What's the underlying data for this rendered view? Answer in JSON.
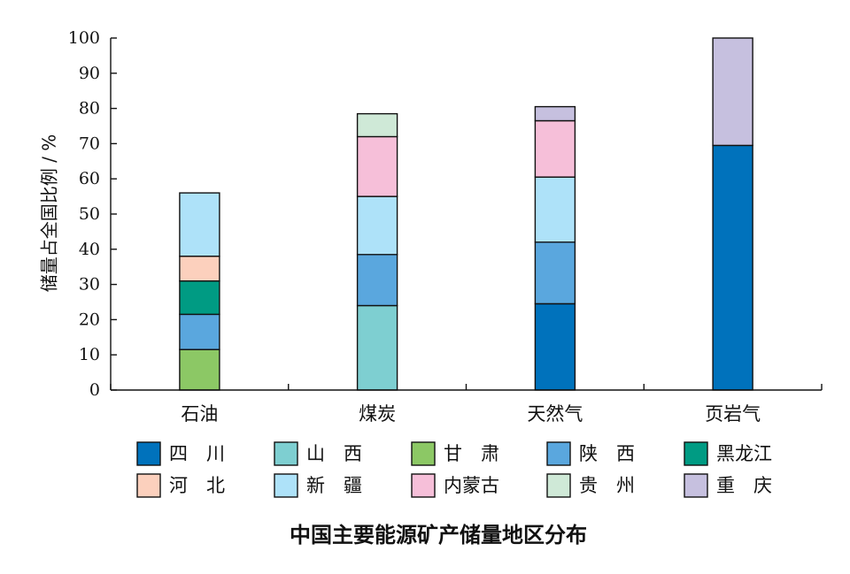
{
  "chart_data": {
    "type": "bar",
    "stacked": true,
    "title": "中国主要能源矿产储量地区分布",
    "ylabel": "储量占全国比例 / %",
    "xlabel": "",
    "ylim": [
      0,
      100
    ],
    "yticks": [
      0,
      10,
      20,
      30,
      40,
      50,
      60,
      70,
      80,
      90,
      100
    ],
    "categories": [
      "石油",
      "煤炭",
      "天然气",
      "页岩气"
    ],
    "legend_position": "bottom",
    "series": [
      {
        "name": "四　川",
        "color": "#0072bc",
        "values": [
          0,
          0,
          24.5,
          69.5
        ]
      },
      {
        "name": "山　西",
        "color": "#7ecfd1",
        "values": [
          0,
          24,
          0,
          0
        ]
      },
      {
        "name": "甘　肃",
        "color": "#8cc865",
        "values": [
          11.5,
          0,
          0,
          0
        ]
      },
      {
        "name": "陕　西",
        "color": "#5aa7de",
        "values": [
          10,
          14.5,
          17.5,
          0
        ]
      },
      {
        "name": "黑龙江",
        "color": "#009b83",
        "values": [
          9.5,
          0,
          0,
          0
        ]
      },
      {
        "name": "河　北",
        "color": "#fcd0bd",
        "values": [
          7,
          0,
          0,
          0
        ]
      },
      {
        "name": "新　疆",
        "color": "#aee2f9",
        "values": [
          18,
          16.5,
          18.5,
          0
        ]
      },
      {
        "name": "内蒙古",
        "color": "#f6bfd9",
        "values": [
          0,
          17,
          16,
          0
        ]
      },
      {
        "name": "贵　州",
        "color": "#cfe9d7",
        "values": [
          0,
          6.5,
          0,
          0
        ]
      },
      {
        "name": "重　庆",
        "color": "#c6c0df",
        "values": [
          0,
          0,
          4,
          30.5
        ]
      }
    ]
  }
}
